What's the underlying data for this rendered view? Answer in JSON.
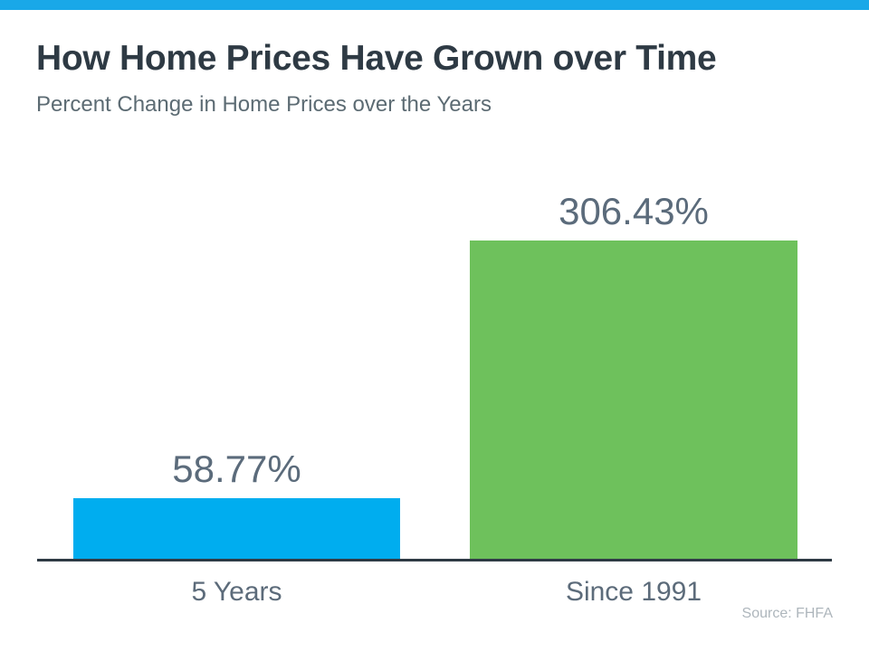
{
  "chart_data": {
    "type": "bar",
    "title": "How Home Prices Have Grown over Time",
    "subtitle": "Percent Change in Home Prices over the Years",
    "categories": [
      "5 Years",
      "Since 1991"
    ],
    "values": [
      58.77,
      306.43
    ],
    "value_labels": [
      "58.77%",
      "306.43%"
    ],
    "bar_colors": [
      "#00ADEF",
      "#6EC15C"
    ],
    "source": "Source: FHFA",
    "ylim": [
      0,
      306.43
    ],
    "xlabel": "",
    "ylabel": "",
    "grid": false,
    "legend": false,
    "y_axis_ticks_visible": false,
    "baseline_axis_visible": true
  },
  "colors": {
    "accent_strip": "#19A8E8",
    "title_text": "#2E3A44",
    "subtitle_text": "#5C6B73",
    "value_label_text": "#5B6B7B",
    "category_label_text": "#5C6B7A",
    "axis_line": "#2E3A44",
    "source_text": "#AEB6BC",
    "background": "#FFFFFF"
  }
}
